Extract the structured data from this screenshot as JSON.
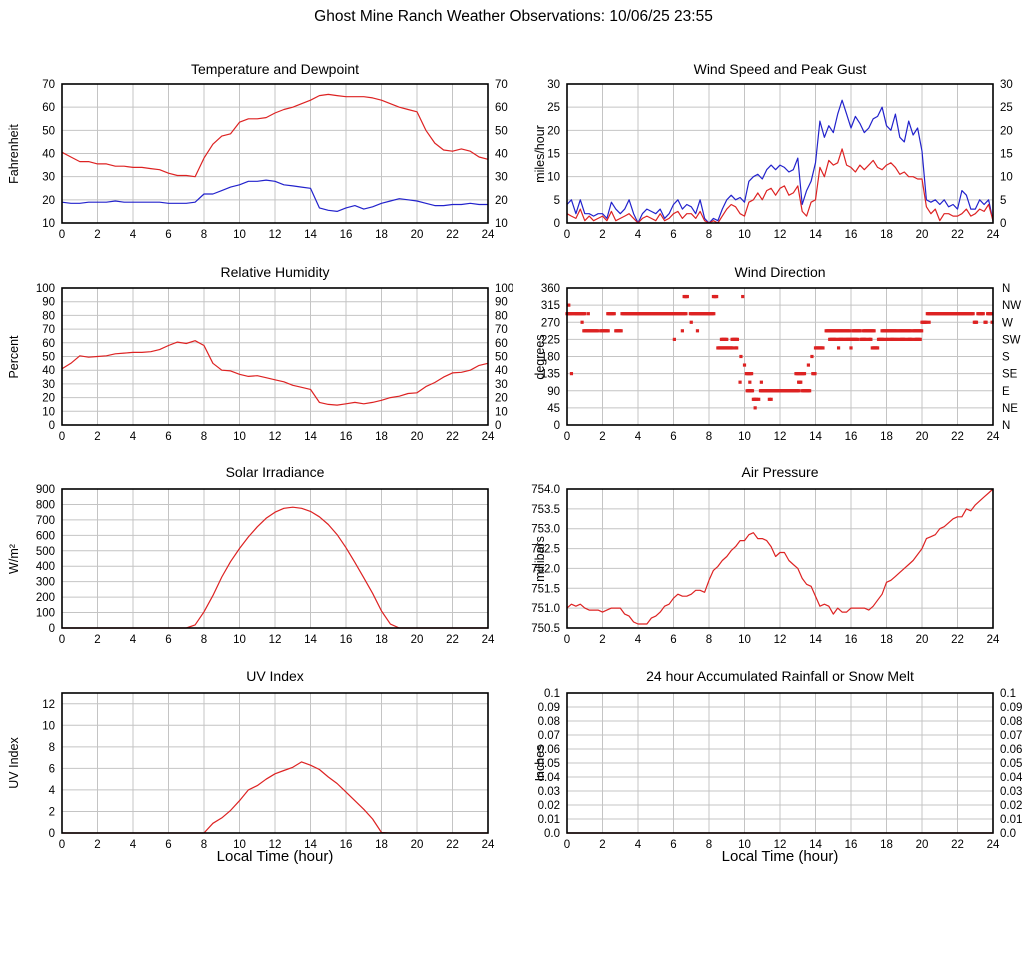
{
  "page": {
    "title": "Ghost Mine Ranch Weather Observations: 10/06/25 23:55",
    "xlabel": "Local Time (hour)"
  },
  "colors": {
    "red": "#dd2222",
    "blue": "#2222cc",
    "grid": "#c4c4c4",
    "frame": "#000000"
  },
  "chart_data": [
    {
      "type": "line",
      "title": "Temperature and Dewpoint",
      "ylabel": "Fahrenheit",
      "xlim": [
        0,
        24
      ],
      "xtick_step": 2,
      "ylim": [
        10,
        70
      ],
      "ytick_step": 10,
      "ytick_format": "int",
      "right_ticks": "numeric",
      "grid": true,
      "legend": "none",
      "series": [
        {
          "name": "Temperature",
          "color": "red",
          "x0": 0,
          "dx": 0.5,
          "values": [
            40.5,
            38.5,
            36.5,
            36.5,
            35.5,
            35.5,
            34.5,
            34.5,
            34,
            34,
            33.5,
            33,
            31.5,
            30.5,
            30.5,
            30,
            38,
            44,
            47.5,
            48.5,
            53.5,
            55,
            55,
            55.5,
            57.5,
            59,
            60,
            61.5,
            63,
            65,
            65.5,
            65,
            64.5,
            64.5,
            64.5,
            64,
            63,
            61.5,
            60,
            59,
            58,
            50,
            44.5,
            41.5,
            41,
            42,
            41,
            38.5,
            37.5
          ]
        },
        {
          "name": "Dewpoint",
          "color": "blue",
          "x0": 0,
          "dx": 0.5,
          "values": [
            19,
            18.5,
            18.5,
            19,
            19,
            19,
            19.5,
            19,
            19,
            19,
            19,
            19,
            18.5,
            18.5,
            18.5,
            19,
            22.5,
            22.5,
            24,
            25.5,
            26.5,
            28,
            28,
            28.5,
            28,
            26.5,
            26,
            25.5,
            25,
            16.5,
            15.5,
            15,
            16.5,
            17.5,
            16,
            17,
            18.5,
            19.5,
            20.5,
            20,
            19.5,
            18.5,
            17.5,
            17.5,
            18,
            18,
            18.5,
            18,
            18
          ]
        }
      ]
    },
    {
      "type": "line",
      "title": "Wind Speed and Peak Gust",
      "ylabel": "miles/hour",
      "xlim": [
        0,
        24
      ],
      "xtick_step": 2,
      "ylim": [
        0,
        30
      ],
      "ytick_step": 5,
      "ytick_format": "int",
      "right_ticks": "numeric",
      "grid": true,
      "legend": "none",
      "series": [
        {
          "name": "Peak Gust",
          "color": "blue",
          "x0": 0,
          "dx": 0.25,
          "values": [
            4,
            5,
            2,
            5,
            2,
            2,
            1.5,
            2,
            2,
            1,
            4.5,
            3,
            2,
            3,
            5,
            2,
            0,
            2,
            3,
            2.5,
            2,
            3,
            1,
            2,
            4,
            5,
            3,
            4,
            3.5,
            2,
            5,
            1,
            0,
            1,
            0.5,
            3,
            5,
            6,
            5,
            5.5,
            4.5,
            9,
            10,
            10.5,
            9.5,
            11.5,
            12.5,
            11.5,
            12.5,
            12,
            11,
            11.5,
            14,
            4,
            7,
            9,
            13,
            22,
            18.5,
            21,
            19.5,
            23.5,
            26.5,
            23.5,
            20.5,
            23,
            21.5,
            19.5,
            20.5,
            22.5,
            23,
            25,
            21,
            20,
            23.5,
            18.5,
            17.5,
            22,
            19,
            20.5,
            15.5,
            5,
            4.5,
            5,
            4,
            5,
            3.5,
            4,
            3,
            7,
            6,
            3,
            3,
            5,
            4,
            5,
            0.5
          ]
        },
        {
          "name": "Wind Speed",
          "color": "red",
          "x0": 0,
          "dx": 0.25,
          "values": [
            2,
            1.5,
            1,
            3,
            0.5,
            1.5,
            0.5,
            1,
            1.5,
            0.5,
            2.5,
            0.5,
            1,
            1.5,
            2,
            1,
            0,
            1,
            1.5,
            1,
            0.5,
            2,
            0.5,
            1,
            2,
            2.5,
            1,
            2,
            2,
            1,
            2.5,
            0.5,
            0,
            0.5,
            0,
            1.5,
            3,
            4,
            3.5,
            2,
            1.5,
            4.5,
            5,
            6.5,
            5,
            7,
            7.5,
            6,
            7.5,
            8,
            6,
            6.5,
            8,
            2.5,
            1.5,
            4.5,
            5,
            12,
            10,
            13.5,
            12.5,
            13,
            16,
            12.5,
            12,
            11,
            12.5,
            11.5,
            12.5,
            13.5,
            12,
            11.5,
            12.5,
            13,
            12,
            10.5,
            11,
            10,
            10,
            9.5,
            9.5,
            3.5,
            2,
            3,
            0.5,
            2,
            2,
            1.5,
            1.5,
            2,
            3,
            1.5,
            2,
            3,
            2.5,
            4,
            0.5
          ]
        }
      ]
    },
    {
      "type": "line",
      "title": "Relative Humidity",
      "ylabel": "Percent",
      "xlim": [
        0,
        24
      ],
      "xtick_step": 2,
      "ylim": [
        0,
        100
      ],
      "ytick_step": 10,
      "ytick_format": "int",
      "right_ticks": "numeric",
      "grid": true,
      "legend": "none",
      "series": [
        {
          "name": "Relative Humidity",
          "color": "red",
          "x0": 0,
          "dx": 0.5,
          "values": [
            41,
            45,
            50.5,
            49.5,
            50,
            50.5,
            52,
            52.5,
            53,
            53,
            53.5,
            55,
            58,
            60.5,
            59.5,
            61.5,
            58,
            45,
            40,
            39.5,
            37,
            35.5,
            36,
            34.5,
            33,
            31.5,
            29,
            27.5,
            26,
            16.5,
            15,
            14.5,
            15.5,
            16.5,
            15.5,
            16.5,
            18,
            20,
            21,
            23,
            23.5,
            28,
            31,
            35,
            38,
            38.5,
            40,
            43.5,
            45
          ]
        }
      ]
    },
    {
      "type": "scatter",
      "title": "Wind Direction",
      "ylabel": "degrees",
      "xlim": [
        0,
        24
      ],
      "xtick_step": 2,
      "ylim": [
        0,
        360
      ],
      "ytick_step": 45,
      "ytick_format": "int",
      "right_ticks": "compass",
      "compass_labels": [
        "N",
        "NW",
        "W",
        "SW",
        "S",
        "SE",
        "E",
        "NE",
        "N"
      ],
      "grid": true,
      "legend": "none",
      "marker_color": "red",
      "marker_size": 3.2,
      "runs": [
        [
          0.0,
          0.3,
          292.5
        ],
        [
          0.1,
          0.1,
          315
        ],
        [
          0.25,
          0.3,
          135
        ],
        [
          0.4,
          1.05,
          292.5
        ],
        [
          0.85,
          0.85,
          270
        ],
        [
          1.2,
          1.2,
          292.5
        ],
        [
          0.95,
          1.75,
          247.5
        ],
        [
          1.9,
          2.35,
          247.5
        ],
        [
          2.3,
          2.7,
          292.5
        ],
        [
          2.75,
          3.05,
          247.5
        ],
        [
          3.1,
          6.7,
          292.5
        ],
        [
          6.05,
          6.05,
          225
        ],
        [
          6.5,
          6.5,
          247.5
        ],
        [
          6.6,
          6.8,
          337.5
        ],
        [
          7.0,
          7.0,
          270
        ],
        [
          7.35,
          7.35,
          247.5
        ],
        [
          6.95,
          8.3,
          292.5
        ],
        [
          8.25,
          8.45,
          337.5
        ],
        [
          8.5,
          9.35,
          202.5
        ],
        [
          8.7,
          9.05,
          225
        ],
        [
          9.3,
          9.65,
          225
        ],
        [
          9.5,
          9.6,
          202.5
        ],
        [
          9.75,
          9.75,
          112.5
        ],
        [
          9.8,
          9.8,
          180
        ],
        [
          9.9,
          9.9,
          337.5
        ],
        [
          10.0,
          10.05,
          157.5
        ],
        [
          10.1,
          10.4,
          135
        ],
        [
          10.3,
          10.35,
          112.5
        ],
        [
          10.15,
          10.45,
          90
        ],
        [
          10.5,
          10.7,
          67.5
        ],
        [
          10.6,
          10.6,
          45
        ],
        [
          10.8,
          10.85,
          67.5
        ],
        [
          10.9,
          13.1,
          90
        ],
        [
          10.95,
          10.95,
          112.5
        ],
        [
          11.4,
          11.4,
          67.5
        ],
        [
          11.5,
          11.5,
          67.5
        ],
        [
          13.25,
          13.7,
          90
        ],
        [
          12.9,
          13.4,
          135
        ],
        [
          13.05,
          13.2,
          112.5
        ],
        [
          13.85,
          14.0,
          135
        ],
        [
          13.6,
          13.6,
          157.5
        ],
        [
          13.8,
          13.8,
          180
        ],
        [
          14.0,
          14.45,
          202.5
        ],
        [
          14.6,
          15.95,
          247.5
        ],
        [
          16.1,
          16.55,
          247.5
        ],
        [
          16.7,
          17.35,
          247.5
        ],
        [
          17.75,
          18.6,
          247.5
        ],
        [
          18.7,
          19.4,
          247.5
        ],
        [
          19.5,
          20.0,
          247.5
        ],
        [
          14.8,
          15.2,
          225
        ],
        [
          15.3,
          15.6,
          225
        ],
        [
          15.7,
          16.4,
          225
        ],
        [
          16.55,
          16.9,
          225
        ],
        [
          17.0,
          17.15,
          225
        ],
        [
          17.55,
          17.9,
          225
        ],
        [
          18.0,
          18.1,
          225
        ],
        [
          18.2,
          18.45,
          225
        ],
        [
          18.55,
          18.65,
          225
        ],
        [
          18.75,
          19.1,
          225
        ],
        [
          19.2,
          19.45,
          225
        ],
        [
          19.6,
          19.95,
          225
        ],
        [
          15.3,
          15.3,
          202.5
        ],
        [
          16.0,
          16.0,
          202.5
        ],
        [
          17.2,
          17.5,
          202.5
        ],
        [
          20.0,
          20.25,
          270
        ],
        [
          20.4,
          20.4,
          270
        ],
        [
          20.3,
          22.9,
          292.5
        ],
        [
          22.95,
          23.1,
          270
        ],
        [
          23.15,
          23.5,
          292.5
        ],
        [
          23.55,
          23.65,
          270
        ],
        [
          23.7,
          23.95,
          292.5
        ],
        [
          23.95,
          24.0,
          270
        ]
      ]
    },
    {
      "type": "line",
      "title": "Solar Irradiance",
      "ylabel": "W/m²",
      "xlim": [
        0,
        24
      ],
      "xtick_step": 2,
      "ylim": [
        0,
        900
      ],
      "ytick_step": 100,
      "ytick_format": "int",
      "right_ticks": "none",
      "grid": true,
      "legend": "none",
      "series": [
        {
          "name": "Solar Irradiance",
          "color": "red",
          "x0": 0,
          "dx": 0.5,
          "values": [
            0,
            0,
            0,
            0,
            0,
            0,
            0,
            0,
            0,
            0,
            0,
            0,
            0,
            0,
            0,
            20,
            105,
            210,
            330,
            430,
            515,
            590,
            655,
            710,
            750,
            775,
            782,
            775,
            755,
            720,
            670,
            605,
            520,
            425,
            325,
            225,
            110,
            25,
            0,
            0,
            0,
            0,
            0,
            0,
            0,
            0,
            0,
            0,
            0
          ]
        }
      ]
    },
    {
      "type": "line",
      "title": "Air Pressure",
      "ylabel": "millibars",
      "xlim": [
        0,
        24
      ],
      "xtick_step": 2,
      "ylim": [
        750.5,
        754.0
      ],
      "ytick_step": 0.5,
      "ytick_format": "1dp",
      "right_ticks": "none",
      "grid": true,
      "legend": "none",
      "series": [
        {
          "name": "Air Pressure",
          "color": "red",
          "x0": 0,
          "dx": 0.25,
          "values": [
            751.0,
            751.1,
            751.05,
            751.1,
            751.0,
            750.95,
            750.95,
            750.95,
            750.9,
            750.95,
            751.0,
            751.0,
            751.0,
            750.85,
            750.8,
            750.65,
            750.6,
            750.6,
            750.6,
            750.75,
            750.8,
            750.9,
            751.05,
            751.1,
            751.25,
            751.35,
            751.3,
            751.3,
            751.35,
            751.45,
            751.45,
            751.4,
            751.7,
            751.95,
            752.05,
            752.2,
            752.3,
            752.45,
            752.55,
            752.7,
            752.7,
            752.85,
            752.9,
            752.75,
            752.75,
            752.7,
            752.55,
            752.3,
            752.4,
            752.4,
            752.2,
            752.1,
            752.0,
            751.75,
            751.6,
            751.55,
            751.3,
            751.05,
            751.1,
            751.05,
            750.85,
            751.0,
            750.9,
            750.9,
            751.0,
            751.0,
            751.0,
            751.0,
            750.95,
            751.05,
            751.2,
            751.35,
            751.65,
            751.7,
            751.8,
            751.9,
            752.0,
            752.1,
            752.2,
            752.35,
            752.5,
            752.75,
            752.8,
            752.85,
            753.0,
            753.05,
            753.15,
            753.25,
            753.3,
            753.3,
            753.5,
            753.45,
            753.6,
            753.7,
            753.8,
            753.9,
            754.0
          ]
        }
      ]
    },
    {
      "type": "line",
      "title": "UV Index",
      "ylabel": "UV Index",
      "xlim": [
        0,
        24
      ],
      "xtick_step": 2,
      "ylim": [
        0,
        13
      ],
      "ytick_step": 2,
      "ytick_max": 12,
      "ytick_format": "int",
      "right_ticks": "none",
      "grid": true,
      "legend": "none",
      "series": [
        {
          "name": "UV Index",
          "color": "red",
          "x0": 0,
          "dx": 0.5,
          "values": [
            0,
            0,
            0,
            0,
            0,
            0,
            0,
            0,
            0,
            0,
            0,
            0,
            0,
            0,
            0,
            0,
            0,
            0.9,
            1.4,
            2.1,
            3.0,
            4.0,
            4.4,
            5.0,
            5.5,
            5.8,
            6.1,
            6.6,
            6.3,
            5.9,
            5.2,
            4.6,
            3.8,
            3.0,
            2.2,
            1.3,
            0.05,
            0,
            0,
            0,
            0,
            0,
            0,
            0,
            0,
            0,
            0,
            0,
            0
          ]
        }
      ]
    },
    {
      "type": "line",
      "title": "24 hour Accumulated Rainfall or Snow Melt",
      "ylabel": "Inches",
      "xlim": [
        0,
        24
      ],
      "xtick_step": 2,
      "ylim": [
        0,
        0.1
      ],
      "ytick_step": 0.01,
      "ytick_format": "trim2dp",
      "right_ticks": "numeric",
      "grid": true,
      "legend": "none",
      "series": [
        {
          "name": "Rainfall",
          "color": "red",
          "x0": 0,
          "dx": 24,
          "values": [
            0,
            0
          ]
        }
      ]
    }
  ]
}
